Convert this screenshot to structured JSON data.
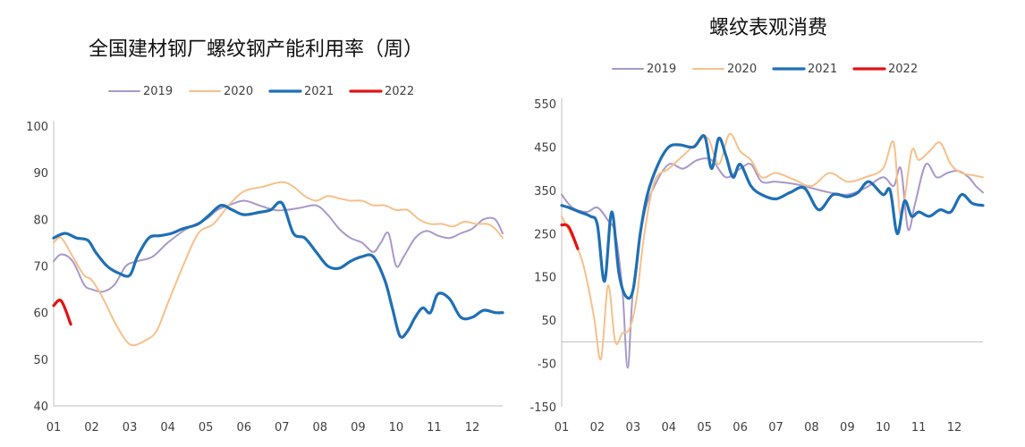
{
  "colors": {
    "2019": "#a898c8",
    "2020": "#f7c08a",
    "2021": "#1f6fb5",
    "2022": "#e01414",
    "axis": "#bfbfbf"
  },
  "chart_data": [
    {
      "type": "line",
      "title": "全国建材钢厂螺纹钢产能利用率（周）",
      "x_ticks": [
        "01",
        "02",
        "03",
        "04",
        "05",
        "06",
        "07",
        "08",
        "09",
        "10",
        "11",
        "12"
      ],
      "x_range": [
        1,
        12.8
      ],
      "ylim": [
        40,
        100
      ],
      "y_ticks": [
        "40",
        "50",
        "60",
        "70",
        "80",
        "90",
        "100"
      ],
      "legend_position": "top",
      "series": [
        {
          "name": "2019",
          "color": "#a898c8",
          "width": 2,
          "x": [
            1.0,
            1.2,
            1.5,
            1.8,
            2.0,
            2.3,
            2.6,
            2.9,
            3.2,
            3.6,
            4.0,
            4.5,
            5.0,
            5.3,
            5.6,
            6.0,
            6.4,
            6.8,
            7.1,
            7.5,
            7.9,
            8.2,
            8.5,
            8.8,
            9.1,
            9.4,
            9.6,
            9.8,
            10.0,
            10.2,
            10.5,
            10.8,
            11.1,
            11.4,
            11.7,
            12.0,
            12.3,
            12.6,
            12.8
          ],
          "y": [
            71,
            72.5,
            71,
            66,
            65,
            64.5,
            66,
            70,
            71,
            72,
            75,
            78,
            80,
            82,
            83,
            84,
            83,
            82,
            82,
            82.5,
            83,
            81,
            78,
            76,
            75,
            73,
            75,
            77,
            70,
            72,
            76,
            77.5,
            76.5,
            76,
            77,
            78,
            80,
            80,
            77
          ]
        },
        {
          "name": "2020",
          "color": "#f7c08a",
          "width": 2,
          "x": [
            1.0,
            1.2,
            1.5,
            1.8,
            2.0,
            2.3,
            2.6,
            2.9,
            3.1,
            3.4,
            3.7,
            4.0,
            4.4,
            4.8,
            5.2,
            5.6,
            6.0,
            6.5,
            7.0,
            7.3,
            7.6,
            7.9,
            8.2,
            8.5,
            8.8,
            9.1,
            9.4,
            9.7,
            10.0,
            10.3,
            10.6,
            10.9,
            11.2,
            11.5,
            11.8,
            12.1,
            12.4,
            12.6,
            12.8
          ],
          "y": [
            75,
            76,
            72,
            68,
            67,
            63,
            58,
            54,
            53,
            54,
            56,
            62,
            70,
            77,
            79,
            83,
            86,
            87,
            88,
            87,
            85,
            84,
            85,
            84.5,
            84,
            84,
            83,
            83,
            82,
            82,
            80,
            79,
            79,
            78.5,
            79.5,
            79,
            79,
            78,
            76
          ]
        },
        {
          "name": "2021",
          "color": "#1f6fb5",
          "width": 3.2,
          "x": [
            1.0,
            1.3,
            1.6,
            1.9,
            2.1,
            2.4,
            2.7,
            3.0,
            3.2,
            3.5,
            3.8,
            4.1,
            4.4,
            4.8,
            5.1,
            5.4,
            5.7,
            6.0,
            6.4,
            6.7,
            7.0,
            7.3,
            7.6,
            7.9,
            8.2,
            8.5,
            8.8,
            9.1,
            9.4,
            9.7,
            9.9,
            10.1,
            10.3,
            10.5,
            10.7,
            10.9,
            11.1,
            11.4,
            11.7,
            12.0,
            12.3,
            12.6,
            12.8
          ],
          "y": [
            76,
            77,
            76,
            75.5,
            73,
            70,
            68.5,
            68,
            72,
            76,
            76.5,
            77,
            78,
            79,
            81,
            83,
            82,
            81,
            81.5,
            82,
            83.5,
            77,
            76,
            73,
            70,
            69.5,
            71,
            72,
            72,
            67,
            61,
            55,
            56,
            59,
            61,
            60,
            64,
            63,
            59,
            59,
            60.5,
            60,
            60
          ]
        },
        {
          "name": "2022",
          "color": "#e01414",
          "width": 3.2,
          "x": [
            1.0,
            1.2,
            1.45
          ],
          "y": [
            61.5,
            62.5,
            57.5
          ]
        }
      ]
    },
    {
      "type": "line",
      "title": "螺纹表观消费",
      "x_ticks": [
        "01",
        "02",
        "03",
        "04",
        "05",
        "06",
        "07",
        "08",
        "09",
        "10",
        "11",
        "12"
      ],
      "x_range": [
        1,
        12.8
      ],
      "ylim": [
        -150,
        550
      ],
      "y_ticks": [
        "550",
        "450",
        "350",
        "250",
        "150",
        "50",
        "-50",
        "-150"
      ],
      "legend_position": "top",
      "series": [
        {
          "name": "2019",
          "color": "#a898c8",
          "width": 2,
          "x": [
            1.0,
            1.3,
            1.7,
            2.0,
            2.3,
            2.5,
            2.7,
            2.85,
            3.0,
            3.3,
            3.6,
            4.0,
            4.4,
            4.8,
            5.2,
            5.6,
            6.0,
            6.3,
            6.6,
            7.0,
            7.5,
            8.0,
            8.5,
            9.0,
            9.5,
            10.0,
            10.3,
            10.5,
            10.7,
            10.9,
            11.2,
            11.5,
            11.8,
            12.1,
            12.4,
            12.6,
            12.8
          ],
          "y": [
            340,
            310,
            300,
            310,
            280,
            250,
            120,
            -60,
            120,
            290,
            360,
            410,
            400,
            420,
            420,
            380,
            400,
            410,
            370,
            370,
            365,
            355,
            345,
            340,
            355,
            380,
            360,
            400,
            260,
            320,
            410,
            380,
            390,
            395,
            380,
            360,
            345
          ]
        },
        {
          "name": "2020",
          "color": "#f7c08a",
          "width": 2,
          "x": [
            1.0,
            1.3,
            1.6,
            1.9,
            2.1,
            2.3,
            2.5,
            2.7,
            2.9,
            3.1,
            3.3,
            3.6,
            4.0,
            4.4,
            4.8,
            5.1,
            5.4,
            5.7,
            6.0,
            6.3,
            6.6,
            7.0,
            7.5,
            8.0,
            8.5,
            9.0,
            9.5,
            10.0,
            10.3,
            10.5,
            10.8,
            11.0,
            11.3,
            11.6,
            11.9,
            12.2,
            12.5,
            12.8
          ],
          "y": [
            290,
            240,
            180,
            60,
            -40,
            130,
            0,
            20,
            30,
            100,
            240,
            370,
            400,
            430,
            460,
            470,
            410,
            480,
            440,
            420,
            380,
            390,
            375,
            360,
            390,
            370,
            380,
            400,
            460,
            290,
            440,
            420,
            440,
            460,
            410,
            390,
            385,
            380
          ]
        },
        {
          "name": "2021",
          "color": "#1f6fb5",
          "width": 3.2,
          "x": [
            1.0,
            1.2,
            1.5,
            1.8,
            2.0,
            2.2,
            2.4,
            2.6,
            2.8,
            3.0,
            3.2,
            3.4,
            3.7,
            4.0,
            4.3,
            4.7,
            5.0,
            5.2,
            5.4,
            5.6,
            5.8,
            6.0,
            6.3,
            6.6,
            7.0,
            7.4,
            7.8,
            8.2,
            8.6,
            9.0,
            9.3,
            9.6,
            10.0,
            10.2,
            10.4,
            10.6,
            10.8,
            11.0,
            11.3,
            11.6,
            11.9,
            12.2,
            12.5,
            12.8
          ],
          "y": [
            315,
            310,
            300,
            290,
            270,
            140,
            300,
            160,
            105,
            120,
            250,
            340,
            410,
            450,
            455,
            450,
            475,
            400,
            470,
            430,
            380,
            410,
            360,
            340,
            330,
            345,
            355,
            305,
            340,
            335,
            345,
            370,
            340,
            350,
            250,
            325,
            290,
            300,
            290,
            305,
            300,
            340,
            320,
            315
          ]
        },
        {
          "name": "2022",
          "color": "#e01414",
          "width": 3.2,
          "x": [
            1.0,
            1.2,
            1.45
          ],
          "y": [
            270,
            265,
            215
          ]
        }
      ]
    }
  ]
}
